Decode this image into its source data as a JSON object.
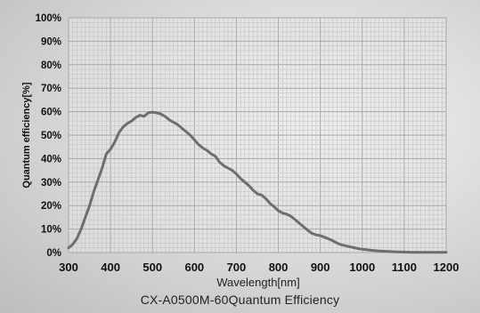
{
  "chart_data": {
    "type": "line",
    "title": "CX-A0500M-60Quantum Efficiency",
    "xlabel": "Wavelength[nm]",
    "ylabel": "Quantum efficiency[%]",
    "xlim": [
      300,
      1200
    ],
    "ylim": [
      0,
      100
    ],
    "x_ticks": [
      "300",
      "400",
      "500",
      "600",
      "700",
      "800",
      "900",
      "1000",
      "1100",
      "1200"
    ],
    "y_ticks": [
      "0%",
      "10%",
      "20%",
      "30%",
      "40%",
      "50%",
      "60%",
      "70%",
      "80%",
      "90%",
      "100%"
    ],
    "grid": true,
    "legend": "none",
    "line_color": "#6e6e6e",
    "series": [
      {
        "x": [
          300,
          310,
          320,
          330,
          340,
          350,
          360,
          370,
          380,
          390,
          400,
          410,
          420,
          430,
          440,
          450,
          460,
          470,
          480,
          490,
          500,
          510,
          520,
          530,
          540,
          550,
          560,
          570,
          580,
          590,
          600,
          610,
          620,
          630,
          640,
          650,
          660,
          670,
          680,
          690,
          700,
          710,
          720,
          730,
          740,
          750,
          760,
          770,
          780,
          790,
          800,
          810,
          820,
          830,
          840,
          850,
          860,
          870,
          880,
          890,
          900,
          910,
          920,
          930,
          940,
          950,
          960,
          970,
          980,
          990,
          1000,
          1020,
          1040,
          1060,
          1080,
          1100,
          1120,
          1140,
          1160,
          1180,
          1200
        ],
        "values": [
          2,
          3.5,
          6,
          10,
          15,
          20,
          26,
          31,
          36,
          42,
          44,
          47,
          51,
          53.5,
          55,
          56,
          57.5,
          58.5,
          58,
          59.5,
          59.8,
          59.5,
          59,
          58,
          56.5,
          55.5,
          54.5,
          53,
          51.5,
          50,
          48,
          46,
          44.5,
          43.5,
          42,
          41,
          38.5,
          37,
          36,
          35,
          33.5,
          31.5,
          30,
          28.5,
          26.5,
          25,
          24.5,
          23,
          21,
          19.5,
          17.8,
          16.8,
          16.3,
          15.5,
          14,
          12.5,
          11,
          9.5,
          8.2,
          7.5,
          7.2,
          6.5,
          5.8,
          5,
          4,
          3.3,
          2.9,
          2.5,
          2.1,
          1.7,
          1.4,
          1.0,
          0.7,
          0.5,
          0.3,
          0.2,
          0.1,
          0.1,
          0.1,
          0.1,
          0.1
        ]
      }
    ]
  }
}
